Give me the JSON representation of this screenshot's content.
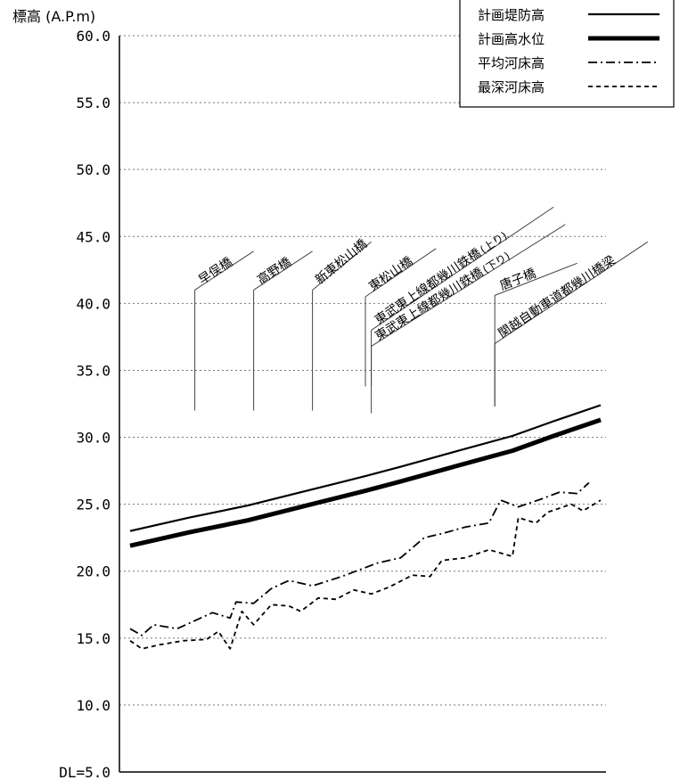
{
  "chart_data": {
    "type": "line",
    "ylabel": "標高 (A.P.m)",
    "ylim": [
      5,
      60
    ],
    "yticks": [
      {
        "value": 60,
        "label": "60.0"
      },
      {
        "value": 55,
        "label": "55.0"
      },
      {
        "value": 50,
        "label": "50.0"
      },
      {
        "value": 45,
        "label": "45.0"
      },
      {
        "value": 40,
        "label": "40.0"
      },
      {
        "value": 35,
        "label": "35.0"
      },
      {
        "value": 30,
        "label": "30.0"
      },
      {
        "value": 25,
        "label": "25.0"
      },
      {
        "value": 20,
        "label": "20.0"
      },
      {
        "value": 15,
        "label": "15.0"
      },
      {
        "value": 10,
        "label": "10.0"
      },
      {
        "value": 5,
        "label": "DL=5.0"
      }
    ],
    "grid": "horizontal dashed",
    "legend_position": "top-right",
    "series": [
      {
        "name": "計画堤防高",
        "style": "solid",
        "color": "#000000",
        "points": [
          [
            0,
            23.0
          ],
          [
            10,
            24.0
          ],
          [
            20,
            24.9
          ],
          [
            30,
            26.0
          ],
          [
            40,
            27.1
          ],
          [
            46,
            27.8
          ],
          [
            55,
            28.9
          ],
          [
            65,
            30.1
          ],
          [
            72,
            31.2
          ],
          [
            80,
            32.4
          ]
        ]
      },
      {
        "name": "計画高水位",
        "style": "thick",
        "color": "#000000",
        "points": [
          [
            0,
            21.9
          ],
          [
            10,
            22.9
          ],
          [
            20,
            23.8
          ],
          [
            30,
            24.9
          ],
          [
            40,
            26.0
          ],
          [
            46,
            26.7
          ],
          [
            55,
            27.8
          ],
          [
            65,
            29.0
          ],
          [
            72,
            30.1
          ],
          [
            80,
            31.3
          ]
        ]
      },
      {
        "name": "平均河床高",
        "style": "dashdot",
        "color": "#000000",
        "points": [
          [
            0,
            15.7
          ],
          [
            2,
            15.2
          ],
          [
            4,
            16.0
          ],
          [
            8,
            15.7
          ],
          [
            14,
            16.9
          ],
          [
            17,
            16.5
          ],
          [
            18,
            17.7
          ],
          [
            21,
            17.6
          ],
          [
            24,
            18.7
          ],
          [
            27,
            19.3
          ],
          [
            31,
            18.9
          ],
          [
            36,
            19.6
          ],
          [
            42,
            20.6
          ],
          [
            46,
            21.0
          ],
          [
            50,
            22.5
          ],
          [
            53,
            22.8
          ],
          [
            57,
            23.3
          ],
          [
            61,
            23.6
          ],
          [
            63,
            25.3
          ],
          [
            66,
            24.8
          ],
          [
            70,
            25.4
          ],
          [
            73,
            25.9
          ],
          [
            76,
            25.8
          ],
          [
            78,
            26.6
          ]
        ]
      },
      {
        "name": "最深河床高",
        "style": "dashed",
        "color": "#000000",
        "points": [
          [
            0,
            14.8
          ],
          [
            2,
            14.2
          ],
          [
            5,
            14.5
          ],
          [
            9,
            14.8
          ],
          [
            13,
            14.9
          ],
          [
            15,
            15.5
          ],
          [
            17,
            14.2
          ],
          [
            19,
            17.0
          ],
          [
            21,
            16.0
          ],
          [
            24,
            17.5
          ],
          [
            27,
            17.4
          ],
          [
            29,
            17.0
          ],
          [
            32,
            18.0
          ],
          [
            35,
            17.9
          ],
          [
            38,
            18.6
          ],
          [
            41,
            18.3
          ],
          [
            44,
            18.8
          ],
          [
            48,
            19.7
          ],
          [
            51,
            19.6
          ],
          [
            53,
            20.8
          ],
          [
            57,
            21.0
          ],
          [
            61,
            21.6
          ],
          [
            65,
            21.1
          ],
          [
            66,
            24.0
          ],
          [
            69,
            23.6
          ],
          [
            71,
            24.4
          ],
          [
            75,
            25.0
          ],
          [
            77,
            24.5
          ],
          [
            80,
            25.3
          ]
        ]
      }
    ],
    "bridges": [
      {
        "name": "早俣橋",
        "marker_x": 11,
        "marker_base": 32.0,
        "marker_top": 41.0,
        "tail_x": 21,
        "tail_top": 43.9
      },
      {
        "name": "高野橋",
        "marker_x": 21,
        "marker_base": 32.0,
        "marker_top": 41.0,
        "tail_x": 31,
        "tail_top": 43.9
      },
      {
        "name": "新東松山橋",
        "marker_x": 31,
        "marker_base": 32.0,
        "marker_top": 41.0,
        "tail_x": 41,
        "tail_top": 44.6
      },
      {
        "name": "東松山橋",
        "marker_x": 40,
        "marker_base": 33.8,
        "marker_top": 40.5,
        "tail_x": 52,
        "tail_top": 44.1
      },
      {
        "name": "東武東上線都幾川鉄橋",
        "suffix": "(上り)",
        "marker_x": 41,
        "marker_base": 33.8,
        "marker_top": 38.0,
        "tail_x": 72,
        "tail_top": 47.2
      },
      {
        "name": "東武東上線都幾川鉄橋",
        "suffix": "(下り)",
        "marker_x": 41,
        "marker_base": 31.8,
        "marker_top": 36.8,
        "tail_x": 74,
        "tail_top": 45.9
      },
      {
        "name": "唐子橋",
        "marker_x": 62,
        "marker_base": 32.3,
        "marker_top": 40.6,
        "tail_x": 76,
        "tail_top": 43.0
      },
      {
        "name": "関越自動車道都幾川橋梁",
        "marker_x": 62,
        "marker_base": 32.3,
        "marker_top": 37.0,
        "tail_x": 88,
        "tail_top": 44.6
      }
    ]
  }
}
